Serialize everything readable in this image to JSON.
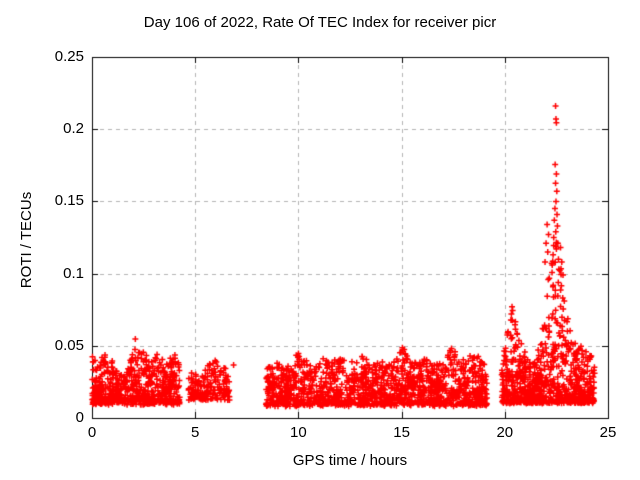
{
  "page": {
    "background": "#ffffff"
  },
  "chart_data": {
    "type": "scatter",
    "title": "Day 106 of 2022, Rate Of TEC Index for receiver picr",
    "xlabel": "GPS time / hours",
    "ylabel": "ROTI / TECUs",
    "xlim": [
      0,
      25
    ],
    "ylim": [
      0,
      0.25
    ],
    "xticks": [
      {
        "v": 0,
        "label": "0"
      },
      {
        "v": 5,
        "label": "5"
      },
      {
        "v": 10,
        "label": "10"
      },
      {
        "v": 15,
        "label": "15"
      },
      {
        "v": 20,
        "label": "20"
      },
      {
        "v": 25,
        "label": "25"
      }
    ],
    "yticks": [
      {
        "v": 0,
        "label": "0"
      },
      {
        "v": 0.05,
        "label": "0.05"
      },
      {
        "v": 0.1,
        "label": "0.1"
      },
      {
        "v": 0.15,
        "label": "0.15"
      },
      {
        "v": 0.2,
        "label": "0.2"
      },
      {
        "v": 0.25,
        "label": "0.25"
      }
    ],
    "grid": true,
    "legend": "none",
    "marker": {
      "shape": "plus",
      "color": "#ff0000",
      "size": 7,
      "stroke": 1.5
    },
    "grid_color": "#b3b3b3",
    "axis_color": "#000000",
    "text_color": "#000000",
    "point_cloud": {
      "seed": 1062022,
      "comment": "dense ROTI bands reconstructed as clusters: t-range, point count, min value, density exponent k, envelope [t, max-value] control points",
      "clusters": [
        {
          "t0": 0.0,
          "t1": 4.25,
          "n": 620,
          "ymin": 0.009,
          "k": 1.7,
          "env": [
            [
              0.0,
              0.05
            ],
            [
              0.3,
              0.04
            ],
            [
              0.8,
              0.045
            ],
            [
              1.2,
              0.032
            ],
            [
              1.6,
              0.028
            ],
            [
              2.0,
              0.045
            ],
            [
              2.4,
              0.048
            ],
            [
              2.8,
              0.038
            ],
            [
              3.2,
              0.044
            ],
            [
              3.6,
              0.038
            ],
            [
              4.0,
              0.044
            ],
            [
              4.25,
              0.036
            ]
          ]
        },
        {
          "t0": 4.68,
          "t1": 6.67,
          "n": 185,
          "ymin": 0.012,
          "k": 1.7,
          "env": [
            [
              4.68,
              0.03
            ],
            [
              4.9,
              0.036
            ],
            [
              5.1,
              0.026
            ],
            [
              5.3,
              0.03
            ],
            [
              5.6,
              0.034
            ],
            [
              5.9,
              0.045
            ],
            [
              6.1,
              0.04
            ],
            [
              6.35,
              0.036
            ],
            [
              6.67,
              0.028
            ]
          ]
        },
        {
          "t0": 8.42,
          "t1": 19.15,
          "n": 1420,
          "ymin": 0.008,
          "k": 1.8,
          "env": [
            [
              8.42,
              0.032
            ],
            [
              8.8,
              0.042
            ],
            [
              9.2,
              0.036
            ],
            [
              9.6,
              0.034
            ],
            [
              10.05,
              0.048
            ],
            [
              10.4,
              0.038
            ],
            [
              10.8,
              0.034
            ],
            [
              11.2,
              0.042
            ],
            [
              11.6,
              0.036
            ],
            [
              12.0,
              0.044
            ],
            [
              12.4,
              0.036
            ],
            [
              12.8,
              0.04
            ],
            [
              13.2,
              0.043
            ],
            [
              13.6,
              0.036
            ],
            [
              14.0,
              0.04
            ],
            [
              14.4,
              0.036
            ],
            [
              14.8,
              0.044
            ],
            [
              15.05,
              0.05
            ],
            [
              15.4,
              0.038
            ],
            [
              15.8,
              0.036
            ],
            [
              16.2,
              0.042
            ],
            [
              16.6,
              0.035
            ],
            [
              17.0,
              0.04
            ],
            [
              17.45,
              0.049
            ],
            [
              17.8,
              0.038
            ],
            [
              18.2,
              0.042
            ],
            [
              18.6,
              0.044
            ],
            [
              19.0,
              0.036
            ],
            [
              19.15,
              0.03
            ]
          ]
        },
        {
          "t0": 19.85,
          "t1": 24.35,
          "n": 870,
          "ymin": 0.01,
          "k": 2.3,
          "env": [
            [
              19.85,
              0.04
            ],
            [
              20.0,
              0.052
            ],
            [
              20.15,
              0.06
            ],
            [
              20.35,
              0.077
            ],
            [
              20.55,
              0.066
            ],
            [
              20.75,
              0.058
            ],
            [
              20.95,
              0.048
            ],
            [
              21.2,
              0.04
            ],
            [
              21.5,
              0.044
            ],
            [
              21.75,
              0.055
            ],
            [
              21.95,
              0.075
            ],
            [
              22.1,
              0.095
            ],
            [
              22.25,
              0.11
            ],
            [
              22.4,
              0.13
            ],
            [
              22.5,
              0.145
            ],
            [
              22.6,
              0.12
            ],
            [
              22.75,
              0.1
            ],
            [
              22.9,
              0.085
            ],
            [
              23.05,
              0.068
            ],
            [
              23.2,
              0.06
            ],
            [
              23.4,
              0.052
            ],
            [
              23.6,
              0.048
            ],
            [
              23.8,
              0.055
            ],
            [
              24.0,
              0.05
            ],
            [
              24.2,
              0.045
            ],
            [
              24.35,
              0.035
            ]
          ]
        }
      ],
      "outlier_points": [
        [
          2.1,
          0.0547
        ],
        [
          6.86,
          0.0367
        ],
        [
          20.35,
          0.077
        ],
        [
          20.38,
          0.0745
        ],
        [
          20.32,
          0.072
        ],
        [
          21.95,
          0.108
        ],
        [
          22.0,
          0.121
        ],
        [
          22.05,
          0.134
        ],
        [
          22.08,
          0.115
        ],
        [
          22.12,
          0.127
        ],
        [
          22.46,
          0.216
        ],
        [
          22.48,
          0.207
        ],
        [
          22.5,
          0.2045
        ],
        [
          22.44,
          0.1755
        ],
        [
          22.5,
          0.169
        ],
        [
          22.46,
          0.1625
        ],
        [
          22.52,
          0.157
        ],
        [
          22.48,
          0.15
        ],
        [
          22.43,
          0.145
        ],
        [
          22.53,
          0.141
        ],
        [
          22.4,
          0.137
        ],
        [
          22.55,
          0.133
        ],
        [
          22.47,
          0.129
        ],
        [
          22.37,
          0.125
        ],
        [
          22.57,
          0.121
        ],
        [
          22.5,
          0.117
        ],
        [
          22.34,
          0.113
        ],
        [
          22.6,
          0.11
        ],
        [
          22.3,
          0.106
        ],
        [
          22.62,
          0.103
        ],
        [
          22.7,
          0.118
        ],
        [
          22.76,
          0.108
        ],
        [
          22.82,
          0.099
        ]
      ]
    }
  }
}
